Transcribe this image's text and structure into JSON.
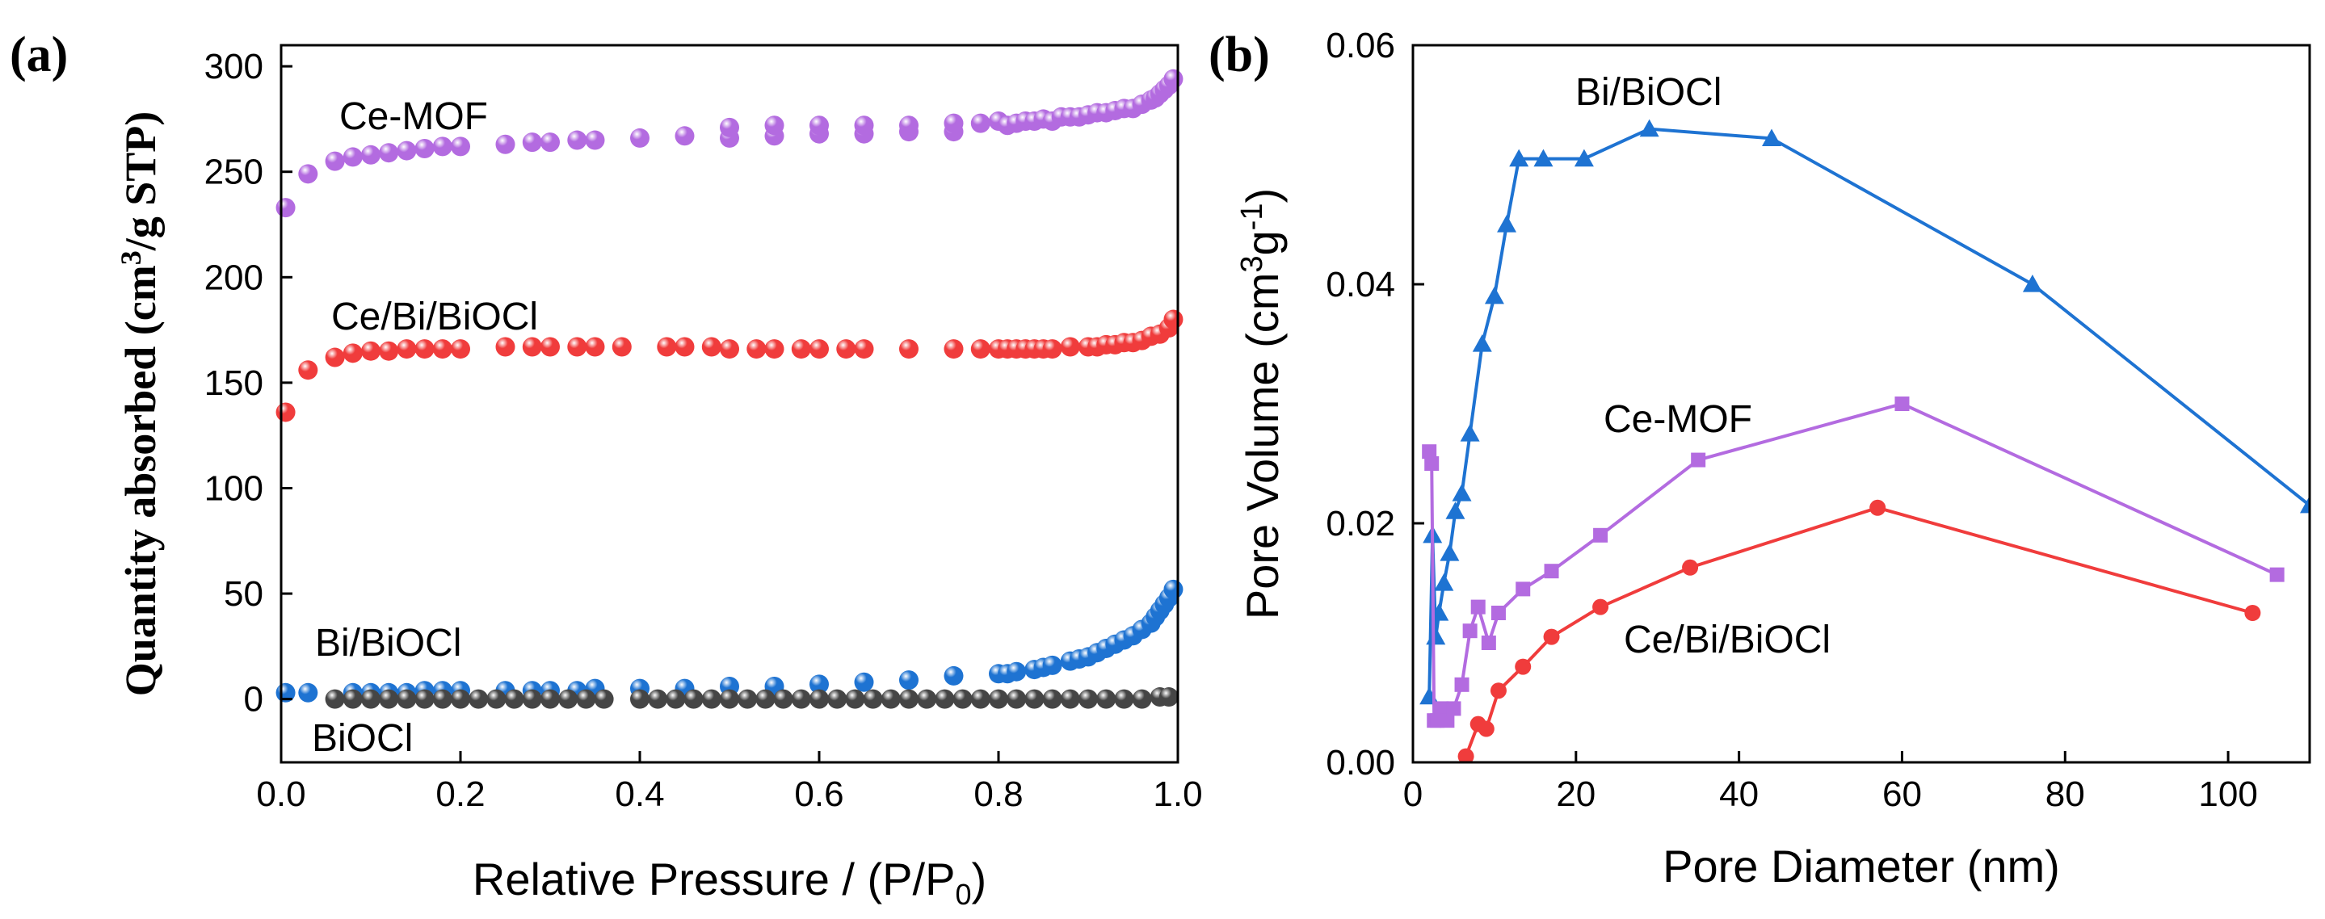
{
  "chart_data": [
    {
      "type": "scatter",
      "panel_label": "(a)",
      "xlabel_main": "Relative Pressure / ",
      "xlabel_paren_open": "(",
      "xlabel_p": "P/P",
      "xlabel_sub": "0",
      "xlabel_paren_close": ")",
      "ylabel_main": "Quantity absorbed ",
      "ylabel_unit_open": "(cm",
      "ylabel_sup": "3",
      "ylabel_unit_close": "/g STP)",
      "xlim": [
        0,
        1.0
      ],
      "ylim": [
        -30,
        310
      ],
      "xticks": [
        "0.0",
        "0.2",
        "0.4",
        "0.6",
        "0.8",
        "1.0"
      ],
      "xtick_values": [
        0,
        0.2,
        0.4,
        0.6,
        0.8,
        1.0
      ],
      "yticks": [
        "0",
        "50",
        "100",
        "150",
        "200",
        "250",
        "300"
      ],
      "ytick_values": [
        0,
        50,
        100,
        150,
        200,
        250,
        300
      ],
      "series": [
        {
          "name": "Ce-MOF",
          "label": "Ce-MOF",
          "color": "#b36be0",
          "x": [
            0.005,
            0.03,
            0.06,
            0.08,
            0.1,
            0.12,
            0.14,
            0.16,
            0.18,
            0.2,
            0.25,
            0.28,
            0.3,
            0.33,
            0.35,
            0.4,
            0.45,
            0.5,
            0.5,
            0.55,
            0.55,
            0.6,
            0.6,
            0.65,
            0.65,
            0.7,
            0.7,
            0.75,
            0.75,
            0.78,
            0.8,
            0.81,
            0.82,
            0.83,
            0.84,
            0.85,
            0.86,
            0.87,
            0.88,
            0.89,
            0.9,
            0.91,
            0.92,
            0.93,
            0.94,
            0.95,
            0.96,
            0.97,
            0.975,
            0.98,
            0.985,
            0.99,
            0.995
          ],
          "y": [
            233,
            249,
            255,
            257,
            258,
            259,
            260,
            261,
            262,
            262,
            263,
            264,
            264,
            265,
            265,
            266,
            267,
            266,
            271,
            267,
            272,
            268,
            272,
            268,
            272,
            269,
            272,
            269,
            273,
            273,
            274,
            272,
            273,
            274,
            274,
            275,
            274,
            276,
            276,
            276,
            277,
            278,
            278,
            279,
            280,
            280,
            282,
            284,
            285,
            287,
            289,
            291,
            294
          ]
        },
        {
          "name": "Ce/Bi/BiOCl",
          "label": "Ce/Bi/BiOCl",
          "color": "#f03c3c",
          "x": [
            0.005,
            0.03,
            0.06,
            0.08,
            0.1,
            0.12,
            0.14,
            0.16,
            0.18,
            0.2,
            0.25,
            0.28,
            0.3,
            0.33,
            0.35,
            0.38,
            0.43,
            0.45,
            0.48,
            0.5,
            0.53,
            0.55,
            0.58,
            0.6,
            0.63,
            0.65,
            0.7,
            0.75,
            0.78,
            0.8,
            0.81,
            0.82,
            0.83,
            0.84,
            0.85,
            0.86,
            0.88,
            0.9,
            0.91,
            0.92,
            0.93,
            0.94,
            0.95,
            0.96,
            0.97,
            0.98,
            0.99,
            0.995
          ],
          "y": [
            136,
            156,
            162,
            164,
            165,
            165,
            166,
            166,
            166,
            166,
            167,
            167,
            167,
            167,
            167,
            167,
            167,
            167,
            167,
            166,
            166,
            166,
            166,
            166,
            166,
            166,
            166,
            166,
            166,
            166,
            166,
            166,
            166,
            166,
            166,
            166,
            167,
            167,
            167,
            168,
            168,
            169,
            169,
            170,
            172,
            173,
            176,
            180
          ]
        },
        {
          "name": "Bi/BiOCl",
          "label": "Bi/BiOCl",
          "color": "#1e73d2",
          "x": [
            0.005,
            0.03,
            0.08,
            0.1,
            0.12,
            0.14,
            0.16,
            0.18,
            0.2,
            0.25,
            0.28,
            0.3,
            0.33,
            0.35,
            0.4,
            0.45,
            0.5,
            0.55,
            0.6,
            0.65,
            0.7,
            0.75,
            0.8,
            0.81,
            0.82,
            0.84,
            0.85,
            0.86,
            0.88,
            0.89,
            0.9,
            0.91,
            0.92,
            0.93,
            0.94,
            0.95,
            0.96,
            0.97,
            0.975,
            0.98,
            0.985,
            0.99,
            0.995
          ],
          "y": [
            3,
            3,
            3,
            3,
            3,
            3,
            4,
            4,
            4,
            4,
            4,
            4,
            4,
            5,
            5,
            5,
            6,
            6,
            7,
            8,
            9,
            11,
            12,
            12,
            13,
            14,
            15,
            16,
            18,
            19,
            20,
            22,
            24,
            26,
            28,
            30,
            33,
            36,
            39,
            42,
            45,
            48,
            52
          ]
        },
        {
          "name": "BiOCl",
          "label": "BiOCl",
          "color": "#454545",
          "x": [
            0.06,
            0.08,
            0.1,
            0.12,
            0.14,
            0.16,
            0.18,
            0.2,
            0.22,
            0.24,
            0.26,
            0.28,
            0.3,
            0.32,
            0.34,
            0.36,
            0.4,
            0.42,
            0.44,
            0.46,
            0.48,
            0.5,
            0.52,
            0.54,
            0.56,
            0.58,
            0.6,
            0.62,
            0.64,
            0.66,
            0.68,
            0.7,
            0.72,
            0.74,
            0.76,
            0.78,
            0.8,
            0.82,
            0.84,
            0.86,
            0.88,
            0.9,
            0.92,
            0.94,
            0.96,
            0.98,
            0.99
          ],
          "y": [
            0,
            0,
            0,
            0,
            0,
            0,
            0,
            0,
            0,
            0,
            0,
            0,
            0,
            0,
            0,
            0,
            0,
            0,
            0,
            0,
            0,
            0,
            0,
            0,
            0,
            0,
            0,
            0,
            0,
            0,
            0,
            0,
            0,
            0,
            0,
            0,
            0,
            0,
            0,
            0,
            0,
            0,
            0,
            0,
            0,
            1,
            1
          ]
        }
      ]
    },
    {
      "type": "line",
      "panel_label": "(b)",
      "xlabel": "Pore Diameter (nm)",
      "ylabel_main": "Pore Volume ",
      "ylabel_unit_open": "(cm",
      "ylabel_sup1": "3",
      "ylabel_mid": "g",
      "ylabel_sup2": "-1",
      "ylabel_unit_close": ")",
      "xlim": [
        0,
        110
      ],
      "ylim": [
        0,
        0.06
      ],
      "xticks": [
        "0",
        "20",
        "40",
        "60",
        "80",
        "100"
      ],
      "xtick_values": [
        0,
        20,
        40,
        60,
        80,
        100
      ],
      "yticks": [
        "0.00",
        "0.02",
        "0.04",
        "0.06"
      ],
      "ytick_values": [
        0,
        0.02,
        0.04,
        0.06
      ],
      "series": [
        {
          "name": "Bi/BiOCl",
          "label": "Bi/BiOCl",
          "color": "#1e73d2",
          "marker": "triangle",
          "x": [
            2.0,
            2.4,
            2.8,
            3.2,
            3.8,
            4.5,
            5.2,
            6.0,
            7.0,
            8.5,
            10,
            11.5,
            13,
            16,
            21,
            29,
            44,
            76,
            110
          ],
          "y": [
            0.0055,
            0.019,
            0.0105,
            0.0125,
            0.015,
            0.0175,
            0.021,
            0.0225,
            0.0275,
            0.035,
            0.039,
            0.045,
            0.0505,
            0.0505,
            0.0505,
            0.053,
            0.0522,
            0.04,
            0.0215
          ]
        },
        {
          "name": "Ce-MOF",
          "label": "Ce-MOF",
          "color": "#b36be0",
          "marker": "square",
          "x": [
            2.0,
            2.3,
            2.6,
            3.0,
            3.5,
            4.2,
            5.0,
            6.0,
            7.0,
            8.0,
            9.3,
            10.5,
            13.5,
            17,
            23,
            35,
            60,
            106
          ],
          "y": [
            0.026,
            0.025,
            0.0035,
            0.0035,
            0.0045,
            0.0035,
            0.0045,
            0.0065,
            0.011,
            0.013,
            0.01,
            0.0125,
            0.0145,
            0.016,
            0.019,
            0.0253,
            0.03,
            0.0157
          ]
        },
        {
          "name": "Ce/Bi/BiOCl",
          "label": "Ce/Bi/BiOCl",
          "color": "#f03c3c",
          "marker": "circle",
          "x": [
            6.5,
            8.0,
            9.0,
            10.5,
            13.5,
            17,
            23,
            34,
            57,
            103
          ],
          "y": [
            0.0005,
            0.0032,
            0.0028,
            0.006,
            0.008,
            0.0105,
            0.013,
            0.0163,
            0.0213,
            0.0125
          ]
        }
      ]
    }
  ]
}
